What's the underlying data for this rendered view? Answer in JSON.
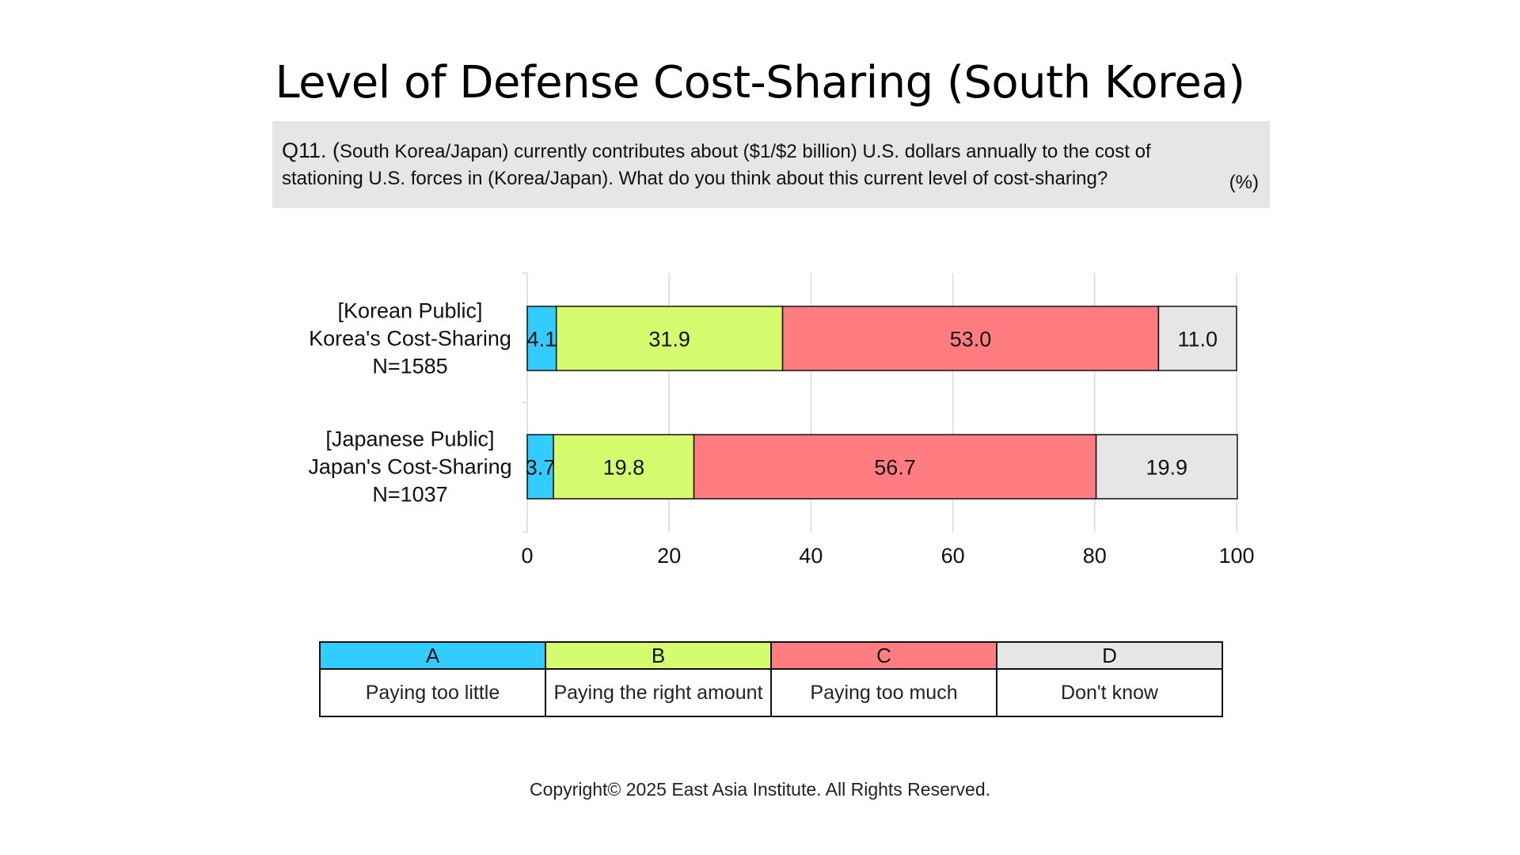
{
  "title": "Level of Defense Cost-Sharing (South Korea)",
  "question": {
    "label": "Q11. (",
    "text": "South Korea/Japan) currently contributes about ($1/$2 billion) U.S. dollars annually to the cost of stationing U.S. forces in (Korea/Japan). What do you think about this current level of cost-sharing?",
    "unit": "(%)"
  },
  "chart_data": {
    "type": "bar",
    "orientation": "horizontal",
    "stacked": true,
    "categories": [
      [
        "[Korean Public]",
        "Korea's Cost-Sharing",
        "N=1585"
      ],
      [
        "[Japanese Public]",
        "Japan's Cost-Sharing",
        "N=1037"
      ]
    ],
    "series": [
      {
        "name": "A",
        "color": "#33ccff",
        "values": [
          4.1,
          3.7
        ]
      },
      {
        "name": "B",
        "color": "#d4fc6e",
        "values": [
          31.9,
          19.8
        ]
      },
      {
        "name": "C",
        "color": "#ff7c80",
        "values": [
          53.0,
          56.7
        ]
      },
      {
        "name": "D",
        "color": "#e6e6e6",
        "values": [
          11.0,
          19.9
        ]
      }
    ],
    "xlim": [
      0,
      100
    ],
    "xticks": [
      "0",
      "20",
      "40",
      "60",
      "80",
      "100"
    ],
    "grid": true
  },
  "legend": {
    "items": [
      {
        "code": "A",
        "label": "Paying too little",
        "color": "#33ccff"
      },
      {
        "code": "B",
        "label": "Paying the right amount",
        "color": "#d4fc6e"
      },
      {
        "code": "C",
        "label": "Paying too much",
        "color": "#ff7c80"
      },
      {
        "code": "D",
        "label": "Don't know",
        "color": "#e6e6e6"
      }
    ]
  },
  "copyright": "Copyright© 2025 East Asia Institute. All Rights Reserved."
}
